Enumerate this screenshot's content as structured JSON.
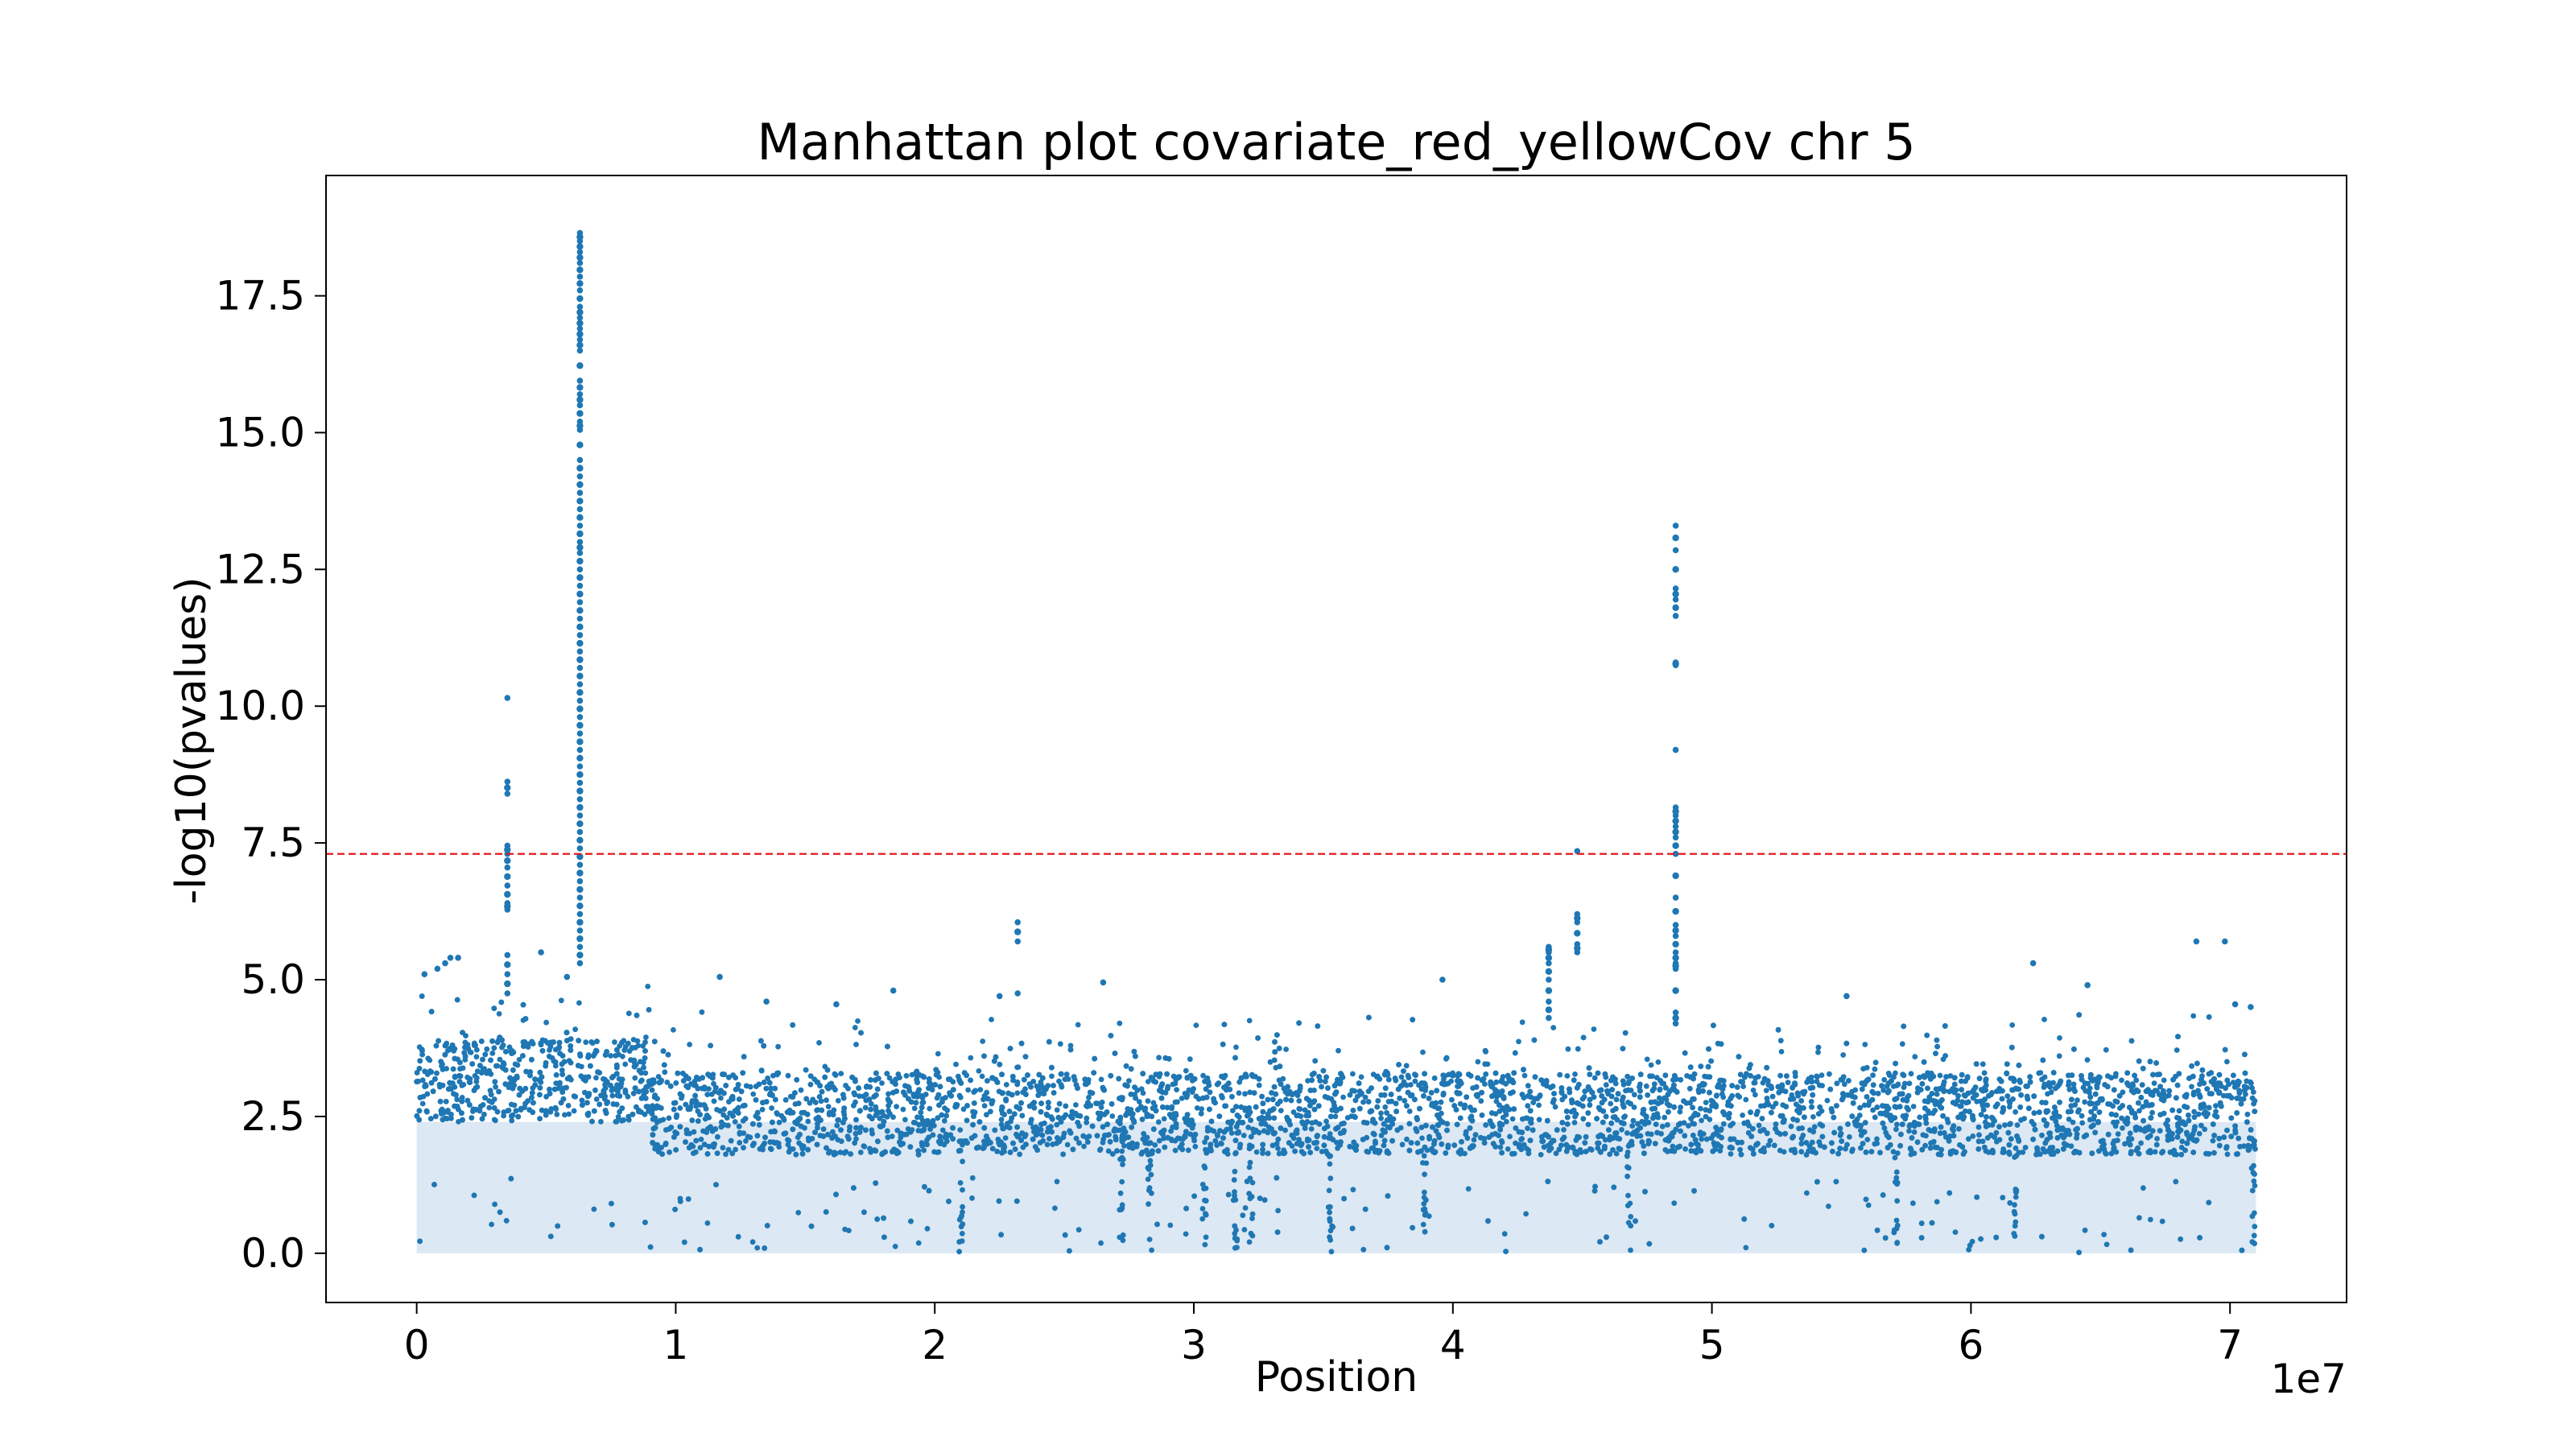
{
  "chart_data": {
    "type": "scatter",
    "title": "Manhattan plot covariate_red_yellowCov chr 5",
    "xlabel": "Position",
    "ylabel": "-log10(pvalues)",
    "x_offset_text": "1e7",
    "xlim": [
      -3500000,
      74500000
    ],
    "ylim": [
      -0.9,
      19.7
    ],
    "x_ticks": [
      0,
      10000000,
      20000000,
      30000000,
      40000000,
      50000000,
      60000000,
      70000000
    ],
    "x_tick_labels": [
      "0",
      "1",
      "2",
      "3",
      "4",
      "5",
      "6",
      "7"
    ],
    "y_ticks": [
      0,
      2.5,
      5,
      7.5,
      10,
      12.5,
      15,
      17.5
    ],
    "y_tick_labels": [
      "0.0",
      "2.5",
      "5.0",
      "7.5",
      "10.0",
      "12.5",
      "15.0",
      "17.5"
    ],
    "significance_line": {
      "y": 7.3,
      "color": "#e31a1c",
      "style": "dashed"
    },
    "grid": false,
    "point_color": "#1f77b4",
    "x_range": [
      0,
      71000000
    ],
    "peaks": [
      {
        "x": 3500000,
        "values": [
          10.15,
          8.62,
          8.4,
          7.45,
          7.3,
          7.05,
          6.72,
          6.4,
          6.28,
          5.45,
          5.1,
          4.75
        ]
      },
      {
        "x": 6300000,
        "values": [
          18.65,
          18.5,
          18.3,
          18.1,
          17.85,
          17.6,
          17.3,
          17.1,
          16.9,
          16.7,
          16.5,
          15.95,
          15.7,
          15.5,
          15.2,
          15.05,
          14.5,
          14.2,
          13.9,
          13.6,
          13.3,
          13.0,
          12.8,
          12.5,
          12.2,
          11.9,
          11.6,
          11.3,
          11.0,
          10.7,
          10.4,
          10.1,
          9.8,
          9.5,
          9.2,
          8.9,
          8.6,
          8.3,
          8.0,
          7.7,
          7.4,
          7.1,
          6.8,
          6.5,
          6.2,
          5.9,
          5.6,
          5.3
        ]
      },
      {
        "x": 48600000,
        "values": [
          13.3,
          12.85,
          12.15,
          11.95,
          11.65,
          10.8,
          10.75,
          9.2,
          8.15,
          8.0,
          7.8,
          7.6,
          7.3,
          6.5,
          6.0,
          5.8,
          5.5,
          5.3,
          5.2,
          4.4,
          4.2
        ]
      },
      {
        "x": 44800000,
        "values": [
          7.35,
          6.2,
          6.05,
          5.65,
          5.5
        ]
      },
      {
        "x": 23200000,
        "values": [
          6.05,
          5.7,
          4.75
        ]
      },
      {
        "x": 43700000,
        "values": [
          5.6,
          5.5,
          5.3,
          5.0,
          4.6,
          4.3
        ]
      }
    ],
    "scattered_points": [
      {
        "x": 300000,
        "y": 5.1
      },
      {
        "x": 800000,
        "y": 5.2
      },
      {
        "x": 1100000,
        "y": 5.3
      },
      {
        "x": 1600000,
        "y": 5.4
      },
      {
        "x": 1300000,
        "y": 5.4
      },
      {
        "x": 4800000,
        "y": 5.5
      },
      {
        "x": 5800000,
        "y": 5.05
      },
      {
        "x": 11700000,
        "y": 5.05
      },
      {
        "x": 18400000,
        "y": 4.8
      },
      {
        "x": 26500000,
        "y": 4.95
      },
      {
        "x": 39600000,
        "y": 5.0
      },
      {
        "x": 55200000,
        "y": 4.7
      },
      {
        "x": 62400000,
        "y": 5.3
      },
      {
        "x": 64500000,
        "y": 4.9
      },
      {
        "x": 68700000,
        "y": 5.7
      },
      {
        "x": 69800000,
        "y": 5.7
      },
      {
        "x": 70200000,
        "y": 4.55
      },
      {
        "x": 70800000,
        "y": 4.5
      },
      {
        "x": 22500000,
        "y": 4.7
      },
      {
        "x": 13500000,
        "y": 4.6
      },
      {
        "x": 16200000,
        "y": 4.55
      }
    ]
  }
}
